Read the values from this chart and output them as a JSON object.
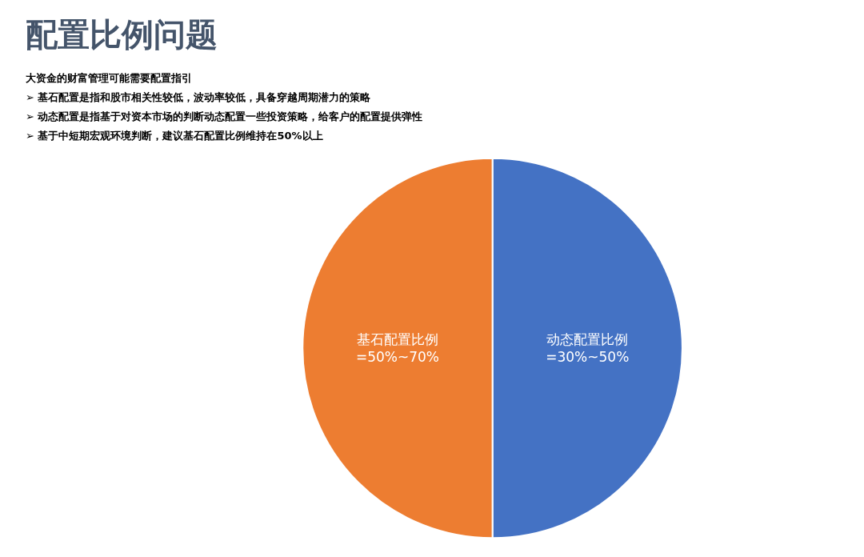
{
  "chart_data": {
    "type": "pie",
    "title": "配置比例问题",
    "subtitle": "大资金的财富管理可能需要配置指引",
    "annotations": [
      "➢ 基石配置是指和股市相关性较低，波动率较低，具备穿越周期潜力的策略",
      "➢ 动态配置是指基于对资本市场的判断动态配置一些投资策略，给客户的配置提供弹性",
      "➢ 基于中短期宏观环境判断，建议基石配置比例维持在50%以上"
    ],
    "categories": [
      "动态配置比例",
      "基石配置比例"
    ],
    "values": [
      50,
      50
    ],
    "value_labels": [
      "=30%~50%",
      "=50%~70%"
    ],
    "colors": [
      "#4472c4",
      "#ed7d31"
    ],
    "legend": false
  }
}
